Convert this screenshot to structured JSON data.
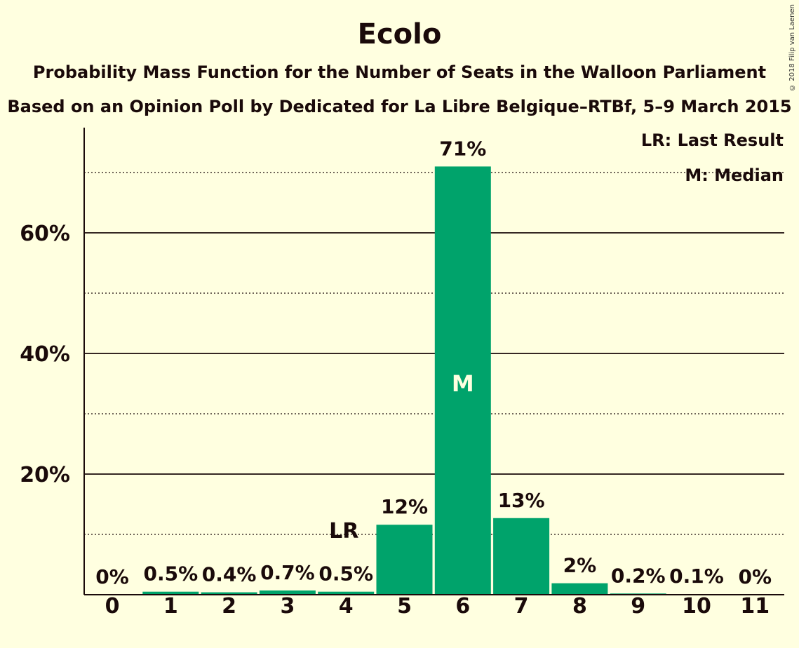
{
  "chart_data": {
    "type": "bar",
    "title": "Ecolo",
    "subtitle": "Probability Mass Function for the Number of Seats in the Walloon Parliament",
    "subtitle2": "Based on an Opinion Poll by Dedicated for La Libre Belgique–RTBf, 5–9 March 2015",
    "copyright": "© 2018 Filip van Laenen",
    "categories": [
      "0",
      "1",
      "2",
      "3",
      "4",
      "5",
      "6",
      "7",
      "8",
      "9",
      "10",
      "11"
    ],
    "values": [
      0,
      0.5,
      0.4,
      0.7,
      0.5,
      11.6,
      71,
      12.7,
      1.9,
      0.2,
      0.1,
      0
    ],
    "value_labels": [
      "0%",
      "0.5%",
      "0.4%",
      "0.7%",
      "0.5%",
      "12%",
      "71%",
      "13%",
      "2%",
      "0.2%",
      "0.1%",
      "0%"
    ],
    "ylim": [
      0,
      77
    ],
    "y_major_ticks": [
      20,
      40,
      60
    ],
    "y_major_tick_labels": [
      "20%",
      "40%",
      "60%"
    ],
    "y_minor_gridlines": [
      10,
      30,
      50,
      70
    ],
    "last_result_category": "4",
    "last_result_marker": "LR",
    "median_category": "6",
    "median_marker": "M",
    "legend": {
      "placement": "top-right",
      "items": [
        "LR: Last Result",
        "M: Median"
      ]
    },
    "bar_color": "#00a36b",
    "background_color": "#ffffe0",
    "text_color": "#1a0a0a"
  }
}
